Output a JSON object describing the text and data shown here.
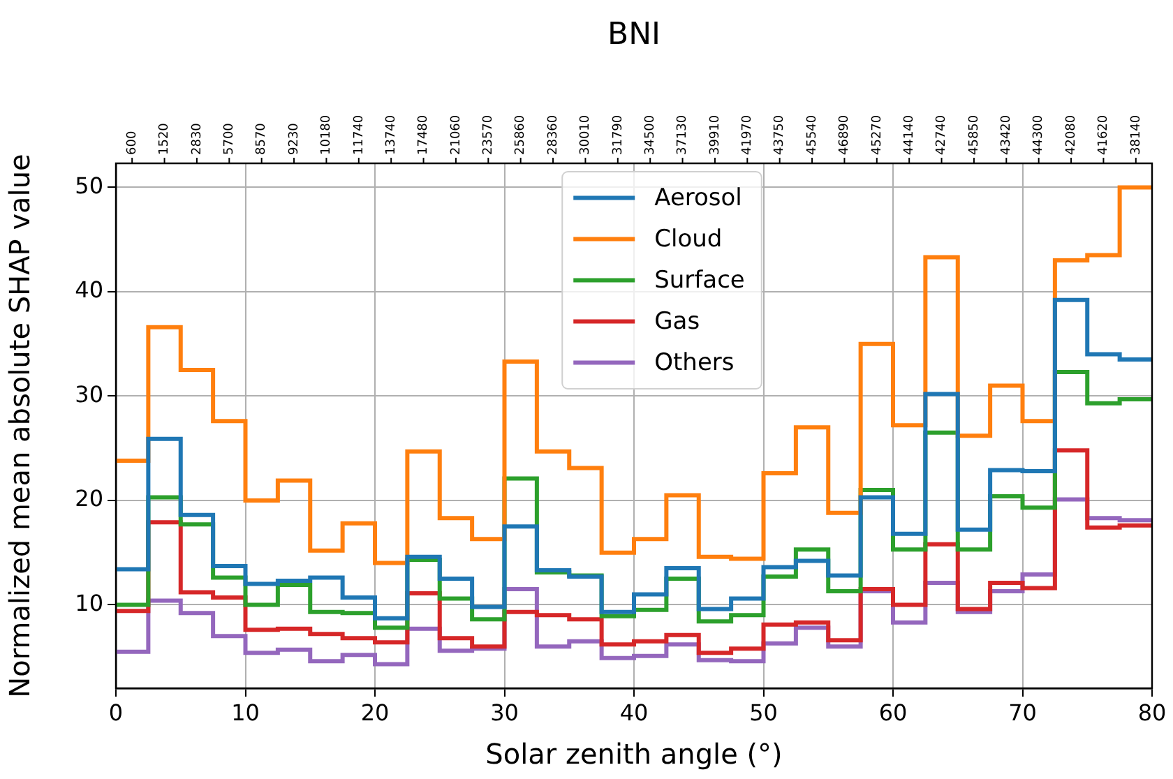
{
  "chart_data": {
    "type": "histogram",
    "title": "BNI",
    "xlabel": "Solar zenith angle (°)",
    "ylabel": "Normalized mean absolute SHAP value",
    "bins": [
      0,
      2.5,
      5,
      7.5,
      10,
      12.5,
      15,
      17.5,
      20,
      22.5,
      25,
      27.5,
      30,
      32.5,
      35,
      37.5,
      40,
      42.5,
      45,
      47.5,
      50,
      52.5,
      55,
      57.5,
      60,
      62.5,
      65,
      67.5,
      70,
      72.5,
      75,
      77.5,
      80
    ],
    "series": [
      {
        "name": "Aerosol",
        "color": "#1f77b4",
        "values": [
          13.4,
          25.9,
          18.6,
          13.7,
          12.0,
          12.3,
          12.6,
          10.7,
          8.7,
          14.6,
          12.5,
          9.8,
          17.5,
          13.3,
          12.7,
          9.3,
          11.0,
          13.5,
          9.6,
          10.6,
          13.6,
          14.2,
          12.8,
          20.3,
          16.8,
          30.2,
          17.2,
          22.9,
          22.8,
          39.2,
          34.0,
          33.5
        ]
      },
      {
        "name": "Cloud",
        "color": "#ff7f0e",
        "values": [
          23.8,
          36.6,
          32.5,
          27.6,
          20.0,
          21.9,
          15.2,
          17.8,
          14.0,
          24.7,
          18.3,
          16.3,
          33.3,
          24.7,
          23.1,
          15.0,
          16.3,
          20.5,
          14.6,
          14.4,
          22.6,
          27.0,
          18.8,
          35.0,
          27.2,
          43.3,
          26.2,
          31.0,
          27.6,
          43.0,
          43.5,
          50.0
        ]
      },
      {
        "name": "Surface",
        "color": "#2ca02c",
        "values": [
          10.0,
          20.3,
          17.7,
          12.6,
          10.0,
          11.9,
          9.3,
          9.2,
          7.8,
          14.3,
          10.6,
          8.6,
          22.1,
          13.1,
          12.8,
          8.9,
          9.5,
          12.5,
          8.4,
          9.0,
          12.7,
          15.3,
          11.3,
          21.0,
          15.3,
          26.5,
          15.3,
          20.4,
          19.3,
          32.3,
          29.3,
          29.7
        ]
      },
      {
        "name": "Gas",
        "color": "#d62728",
        "values": [
          9.4,
          17.9,
          11.2,
          10.7,
          7.6,
          7.7,
          7.2,
          6.8,
          6.4,
          11.1,
          6.8,
          6.0,
          9.3,
          9.0,
          8.6,
          6.2,
          6.5,
          7.1,
          5.4,
          5.8,
          8.1,
          8.3,
          6.6,
          11.5,
          10.0,
          15.8,
          9.6,
          12.1,
          11.6,
          24.8,
          17.4,
          17.6
        ]
      },
      {
        "name": "Others",
        "color": "#9467bd",
        "values": [
          5.5,
          10.4,
          9.2,
          7.0,
          5.4,
          5.7,
          4.6,
          5.2,
          4.3,
          7.7,
          5.6,
          5.8,
          11.5,
          6.0,
          6.5,
          4.9,
          5.1,
          6.2,
          4.7,
          4.6,
          6.3,
          7.8,
          6.0,
          11.3,
          8.3,
          12.1,
          9.3,
          11.3,
          12.9,
          20.1,
          18.3,
          18.1
        ]
      }
    ],
    "xlim": [
      0,
      80
    ],
    "xticks": [
      0,
      10,
      20,
      30,
      40,
      50,
      60,
      70,
      80
    ],
    "ylim": [
      2,
      52.3
    ],
    "yticks": [
      10,
      20,
      30,
      40,
      50
    ],
    "annotations": [
      "600",
      "1520",
      "2830",
      "5700",
      "8570",
      "9230",
      "10180",
      "11740",
      "13740",
      "17480",
      "21060",
      "23570",
      "25860",
      "28360",
      "30010",
      "31790",
      "34500",
      "37130",
      "39910",
      "41970",
      "43750",
      "45540",
      "46890",
      "45270",
      "44140",
      "42740",
      "45850",
      "43420",
      "44300",
      "42080",
      "41620",
      "38140"
    ],
    "grid": true,
    "legend": "top"
  }
}
